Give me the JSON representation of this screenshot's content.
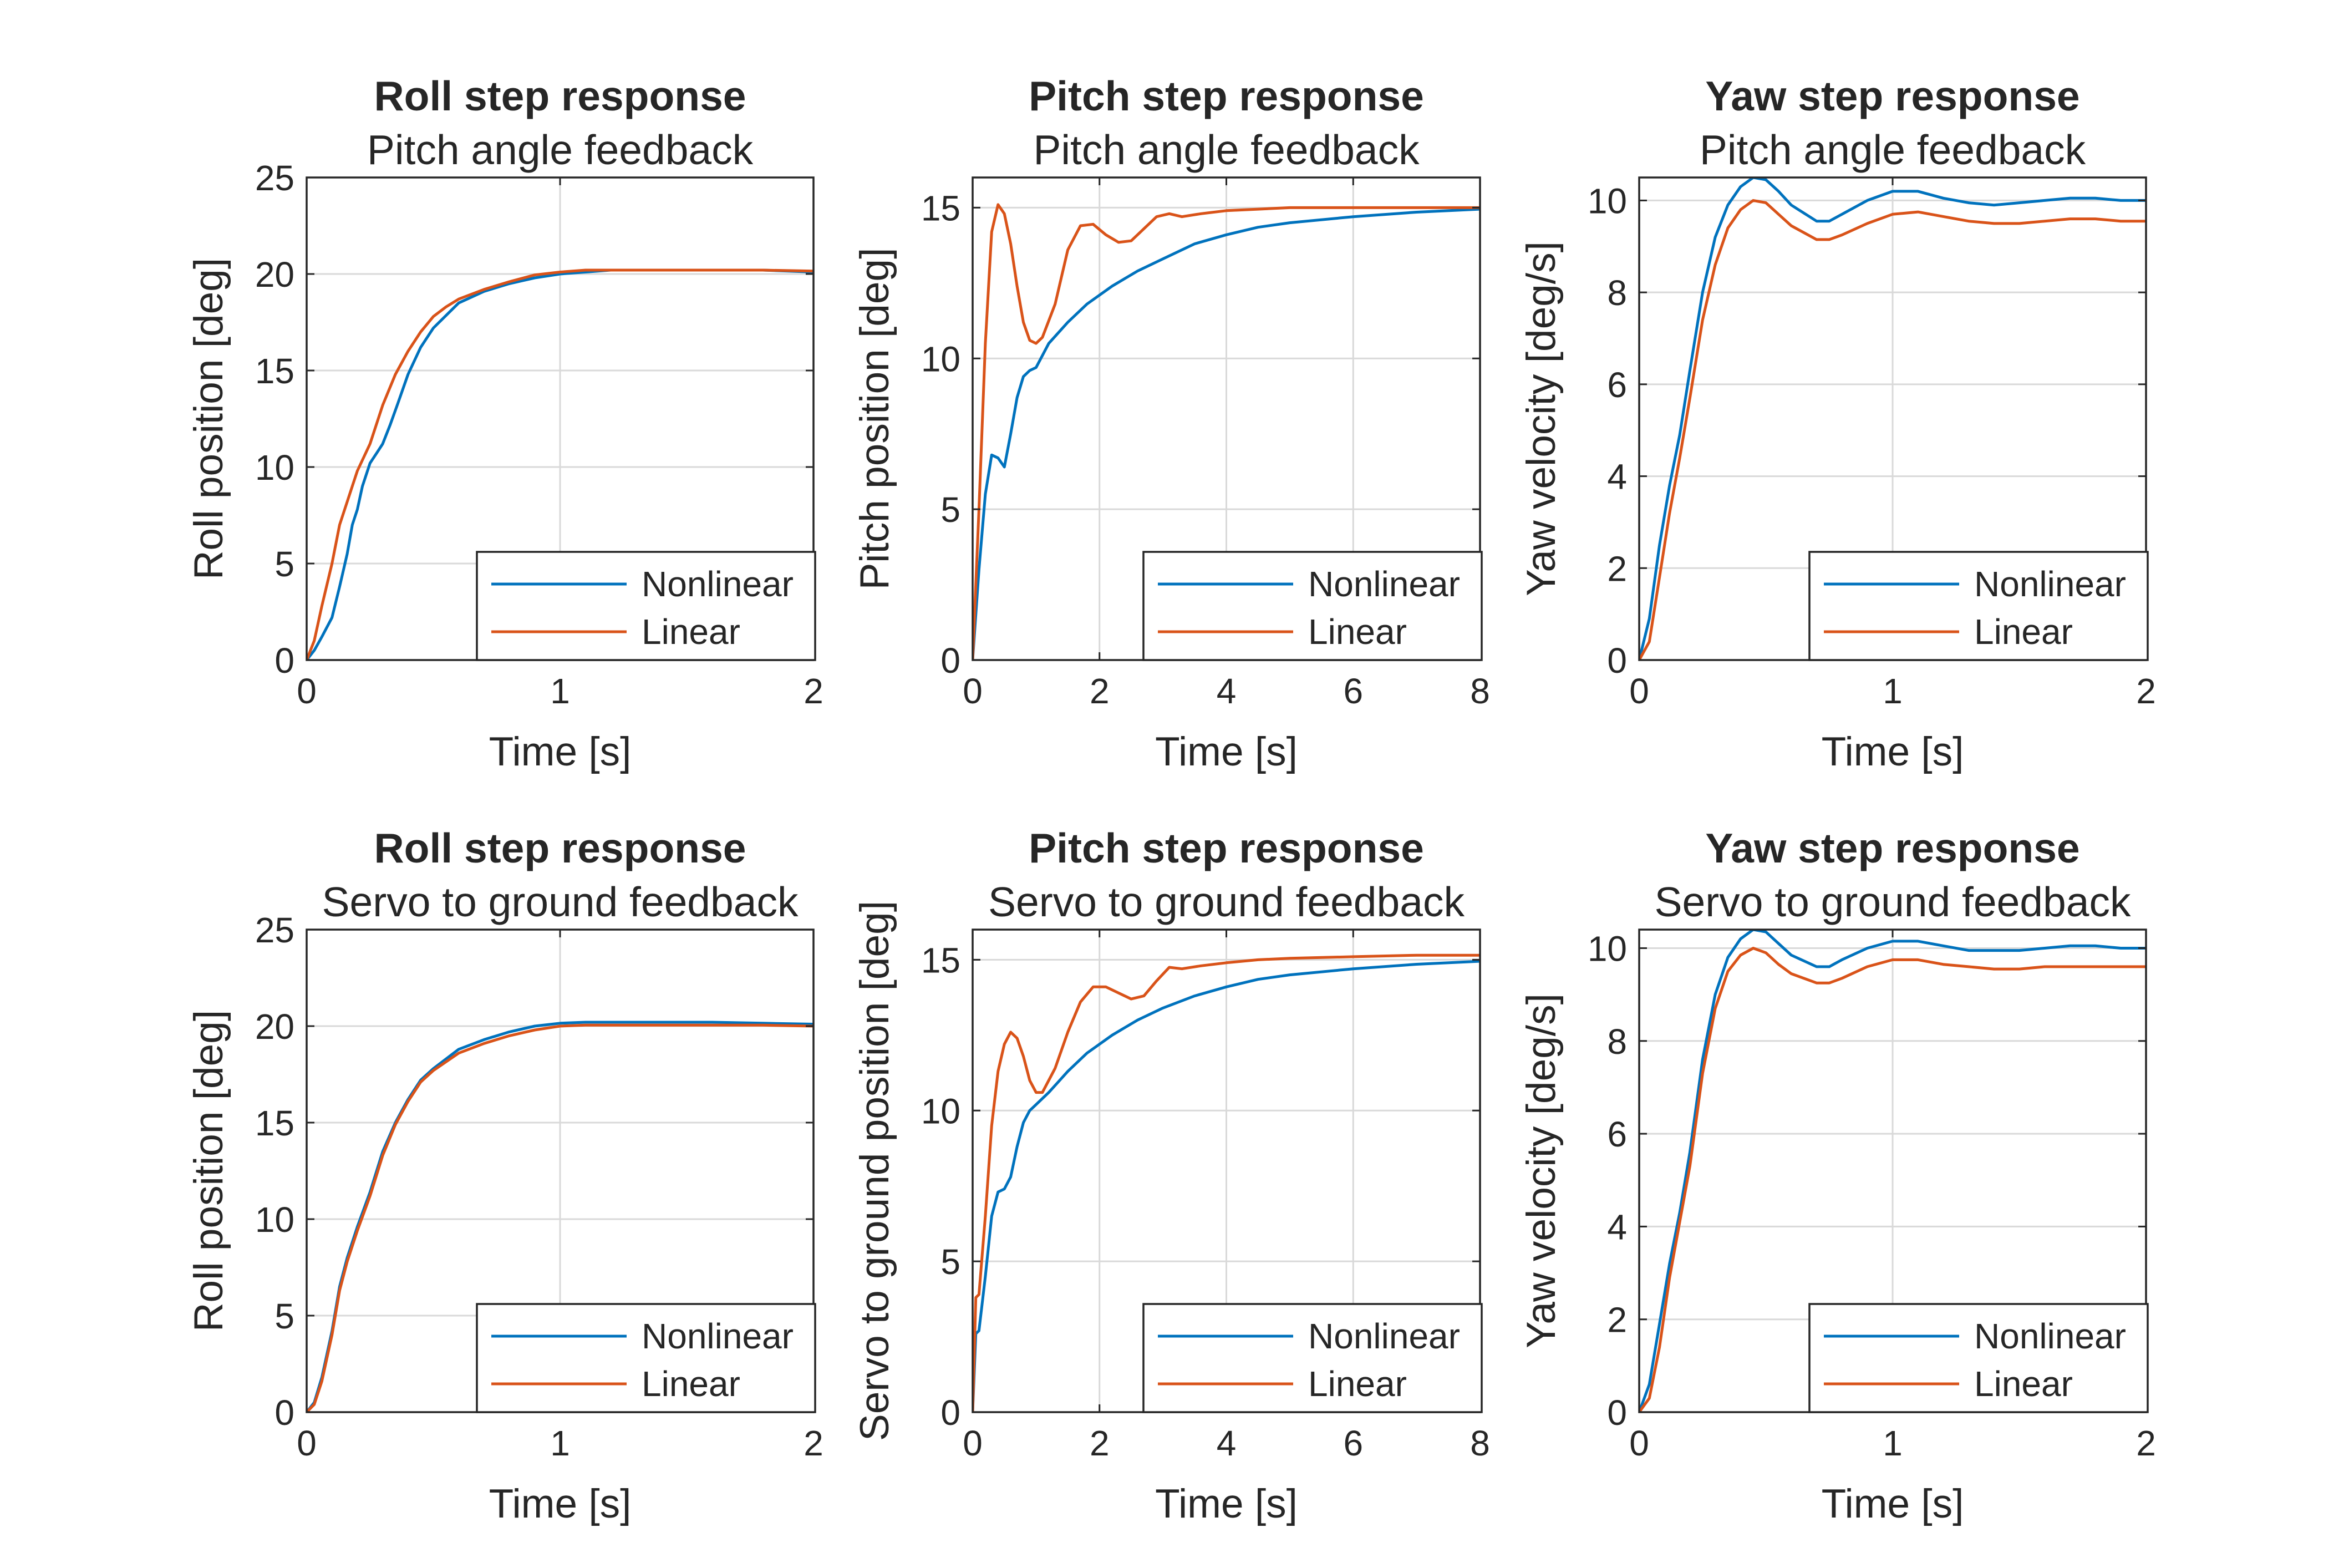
{
  "chart_data": [
    {
      "type": "line",
      "title": "Roll step response",
      "subtitle": "Pitch angle feedback",
      "xlabel": "Time [s]",
      "ylabel": "Roll position [deg]",
      "xlim": [
        0,
        2
      ],
      "ylim": [
        0,
        25
      ],
      "xticks": [
        0,
        1,
        2
      ],
      "yticks": [
        0,
        5,
        10,
        15,
        20,
        25
      ],
      "grid": true,
      "legend_position": "bottom-right",
      "series": [
        {
          "name": "Nonlinear",
          "color": "#0072BD",
          "x": [
            0,
            0.03,
            0.06,
            0.1,
            0.13,
            0.16,
            0.18,
            0.2,
            0.22,
            0.25,
            0.28,
            0.3,
            0.33,
            0.36,
            0.4,
            0.45,
            0.5,
            0.6,
            0.7,
            0.8,
            0.9,
            1.0,
            1.1,
            1.2,
            1.4,
            1.6,
            1.8,
            2.0
          ],
          "y": [
            0,
            0.5,
            1.2,
            2.2,
            3.8,
            5.5,
            7.0,
            7.8,
            9.0,
            10.2,
            10.8,
            11.2,
            12.2,
            13.3,
            14.8,
            16.2,
            17.2,
            18.5,
            19.1,
            19.5,
            19.8,
            20.0,
            20.1,
            20.2,
            20.2,
            20.2,
            20.2,
            20.1
          ]
        },
        {
          "name": "Linear",
          "color": "#D95319",
          "x": [
            0,
            0.03,
            0.06,
            0.1,
            0.13,
            0.16,
            0.2,
            0.25,
            0.3,
            0.35,
            0.4,
            0.45,
            0.5,
            0.55,
            0.6,
            0.7,
            0.8,
            0.9,
            1.0,
            1.1,
            1.2,
            1.4,
            1.6,
            1.8,
            2.0
          ],
          "y": [
            0,
            1.0,
            2.8,
            5.0,
            7.0,
            8.2,
            9.8,
            11.2,
            13.2,
            14.8,
            16.0,
            17.0,
            17.8,
            18.3,
            18.7,
            19.2,
            19.6,
            19.95,
            20.1,
            20.2,
            20.2,
            20.2,
            20.2,
            20.2,
            20.15
          ]
        }
      ]
    },
    {
      "type": "line",
      "title": "Pitch step response",
      "subtitle": "Pitch angle feedback",
      "xlabel": "Time [s]",
      "ylabel": "Pitch position [deg]",
      "xlim": [
        0,
        8
      ],
      "ylim": [
        0,
        16
      ],
      "xticks": [
        0,
        2,
        4,
        6,
        8
      ],
      "yticks": [
        0,
        5,
        10,
        15
      ],
      "grid": true,
      "legend_position": "bottom-right",
      "series": [
        {
          "name": "Nonlinear",
          "color": "#0072BD",
          "x": [
            0,
            0.1,
            0.2,
            0.3,
            0.4,
            0.5,
            0.6,
            0.7,
            0.8,
            0.9,
            1.0,
            1.2,
            1.5,
            1.8,
            2.2,
            2.6,
            3.0,
            3.5,
            4.0,
            4.5,
            5.0,
            6.0,
            7.0,
            8.0
          ],
          "y": [
            0,
            3.0,
            5.5,
            6.8,
            6.7,
            6.4,
            7.5,
            8.7,
            9.4,
            9.6,
            9.7,
            10.5,
            11.2,
            11.8,
            12.4,
            12.9,
            13.3,
            13.8,
            14.1,
            14.35,
            14.5,
            14.7,
            14.85,
            14.95
          ]
        },
        {
          "name": "Linear",
          "color": "#D95319",
          "x": [
            0,
            0.1,
            0.2,
            0.3,
            0.4,
            0.5,
            0.6,
            0.7,
            0.8,
            0.9,
            1.0,
            1.1,
            1.3,
            1.5,
            1.7,
            1.9,
            2.1,
            2.3,
            2.5,
            2.7,
            2.9,
            3.1,
            3.3,
            3.6,
            4.0,
            4.5,
            5.0,
            6.0,
            7.0,
            8.0
          ],
          "y": [
            0,
            5.0,
            10.5,
            14.2,
            15.1,
            14.8,
            13.8,
            12.4,
            11.2,
            10.6,
            10.5,
            10.7,
            11.8,
            13.6,
            14.4,
            14.45,
            14.1,
            13.85,
            13.9,
            14.3,
            14.7,
            14.8,
            14.7,
            14.8,
            14.9,
            14.95,
            15.0,
            15.0,
            15.0,
            15.0
          ]
        }
      ]
    },
    {
      "type": "line",
      "title": "Yaw step response",
      "subtitle": "Pitch angle feedback",
      "xlabel": "Time [s]",
      "ylabel": "Yaw velocity [deg/s]",
      "xlim": [
        0,
        2
      ],
      "ylim": [
        0,
        10.5
      ],
      "xticks": [
        0,
        1,
        2
      ],
      "yticks": [
        0,
        2,
        4,
        6,
        8,
        10
      ],
      "grid": true,
      "legend_position": "bottom-right",
      "series": [
        {
          "name": "Nonlinear",
          "color": "#0072BD",
          "x": [
            0,
            0.04,
            0.08,
            0.12,
            0.16,
            0.2,
            0.25,
            0.3,
            0.35,
            0.4,
            0.45,
            0.5,
            0.55,
            0.6,
            0.7,
            0.75,
            0.8,
            0.9,
            1.0,
            1.1,
            1.2,
            1.3,
            1.4,
            1.5,
            1.6,
            1.7,
            1.8,
            1.9,
            2.0
          ],
          "y": [
            0,
            0.9,
            2.5,
            3.8,
            4.9,
            6.3,
            8.0,
            9.2,
            9.9,
            10.3,
            10.5,
            10.45,
            10.2,
            9.9,
            9.55,
            9.55,
            9.7,
            10.0,
            10.2,
            10.2,
            10.05,
            9.95,
            9.9,
            9.95,
            10.0,
            10.05,
            10.05,
            10.0,
            10.0
          ]
        },
        {
          "name": "Linear",
          "color": "#D95319",
          "x": [
            0,
            0.04,
            0.08,
            0.12,
            0.16,
            0.2,
            0.25,
            0.3,
            0.35,
            0.4,
            0.45,
            0.5,
            0.55,
            0.6,
            0.7,
            0.75,
            0.8,
            0.9,
            1.0,
            1.1,
            1.2,
            1.3,
            1.4,
            1.5,
            1.6,
            1.7,
            1.8,
            1.9,
            2.0
          ],
          "y": [
            0,
            0.4,
            1.8,
            3.2,
            4.4,
            5.7,
            7.4,
            8.6,
            9.4,
            9.8,
            10.0,
            9.95,
            9.7,
            9.45,
            9.15,
            9.15,
            9.25,
            9.5,
            9.7,
            9.75,
            9.65,
            9.55,
            9.5,
            9.5,
            9.55,
            9.6,
            9.6,
            9.55,
            9.55
          ]
        }
      ]
    },
    {
      "type": "line",
      "title": "Roll step response",
      "subtitle": "Servo to ground feedback",
      "xlabel": "Time [s]",
      "ylabel": "Roll position [deg]",
      "xlim": [
        0,
        2
      ],
      "ylim": [
        0,
        25
      ],
      "xticks": [
        0,
        1,
        2
      ],
      "yticks": [
        0,
        5,
        10,
        15,
        20,
        25
      ],
      "grid": true,
      "legend_position": "bottom-right",
      "series": [
        {
          "name": "Nonlinear",
          "color": "#0072BD",
          "x": [
            0,
            0.03,
            0.06,
            0.1,
            0.13,
            0.16,
            0.2,
            0.25,
            0.3,
            0.35,
            0.4,
            0.45,
            0.5,
            0.6,
            0.7,
            0.8,
            0.9,
            1.0,
            1.1,
            1.2,
            1.4,
            1.6,
            1.8,
            2.0
          ],
          "y": [
            0,
            0.5,
            1.8,
            4.2,
            6.5,
            8.0,
            9.6,
            11.4,
            13.5,
            15.0,
            16.2,
            17.2,
            17.8,
            18.8,
            19.3,
            19.7,
            20.0,
            20.15,
            20.2,
            20.2,
            20.2,
            20.2,
            20.15,
            20.1
          ]
        },
        {
          "name": "Linear",
          "color": "#D95319",
          "x": [
            0,
            0.03,
            0.06,
            0.1,
            0.13,
            0.16,
            0.2,
            0.25,
            0.3,
            0.35,
            0.4,
            0.45,
            0.5,
            0.6,
            0.7,
            0.8,
            0.9,
            1.0,
            1.1,
            1.2,
            1.4,
            1.6,
            1.8,
            2.0
          ],
          "y": [
            0,
            0.4,
            1.6,
            4.0,
            6.3,
            7.8,
            9.4,
            11.2,
            13.3,
            14.9,
            16.1,
            17.1,
            17.7,
            18.6,
            19.1,
            19.5,
            19.8,
            20.0,
            20.05,
            20.05,
            20.05,
            20.05,
            20.05,
            20.0
          ]
        }
      ]
    },
    {
      "type": "line",
      "title": "Pitch step response",
      "subtitle": "Servo to ground feedback",
      "xlabel": "Time [s]",
      "ylabel": "Servo to ground position [deg]",
      "xlim": [
        0,
        8
      ],
      "ylim": [
        0,
        16
      ],
      "xticks": [
        0,
        2,
        4,
        6,
        8
      ],
      "yticks": [
        0,
        5,
        10,
        15
      ],
      "grid": true,
      "legend_position": "bottom-right",
      "series": [
        {
          "name": "Nonlinear",
          "color": "#0072BD",
          "x": [
            0,
            0.05,
            0.1,
            0.2,
            0.3,
            0.4,
            0.5,
            0.6,
            0.7,
            0.8,
            0.9,
            1.0,
            1.2,
            1.5,
            1.8,
            2.2,
            2.6,
            3.0,
            3.5,
            4.0,
            4.5,
            5.0,
            6.0,
            7.0,
            8.0
          ],
          "y": [
            0,
            2.6,
            2.7,
            4.5,
            6.5,
            7.3,
            7.4,
            7.8,
            8.8,
            9.6,
            10.0,
            10.2,
            10.6,
            11.3,
            11.9,
            12.5,
            13.0,
            13.4,
            13.8,
            14.1,
            14.35,
            14.5,
            14.7,
            14.85,
            14.95
          ]
        },
        {
          "name": "Linear",
          "color": "#D95319",
          "x": [
            0,
            0.05,
            0.1,
            0.2,
            0.3,
            0.4,
            0.5,
            0.6,
            0.7,
            0.8,
            0.9,
            1.0,
            1.1,
            1.3,
            1.5,
            1.7,
            1.9,
            2.1,
            2.3,
            2.5,
            2.7,
            2.9,
            3.1,
            3.3,
            3.6,
            4.0,
            4.5,
            5.0,
            6.0,
            7.0,
            8.0
          ],
          "y": [
            0,
            3.8,
            3.9,
            6.5,
            9.5,
            11.3,
            12.2,
            12.6,
            12.4,
            11.8,
            11.0,
            10.6,
            10.6,
            11.4,
            12.6,
            13.6,
            14.1,
            14.1,
            13.9,
            13.7,
            13.8,
            14.3,
            14.75,
            14.7,
            14.8,
            14.9,
            15.0,
            15.05,
            15.1,
            15.15,
            15.15
          ]
        }
      ]
    },
    {
      "type": "line",
      "title": "Yaw step response",
      "subtitle": "Servo to ground feedback",
      "xlabel": "Time [s]",
      "ylabel": "Yaw velocity [deg/s]",
      "xlim": [
        0,
        2
      ],
      "ylim": [
        0,
        10.4
      ],
      "xticks": [
        0,
        1,
        2
      ],
      "yticks": [
        0,
        2,
        4,
        6,
        8,
        10
      ],
      "grid": true,
      "legend_position": "bottom-right",
      "series": [
        {
          "name": "Nonlinear",
          "color": "#0072BD",
          "x": [
            0,
            0.04,
            0.08,
            0.12,
            0.16,
            0.2,
            0.25,
            0.3,
            0.35,
            0.4,
            0.45,
            0.5,
            0.55,
            0.6,
            0.7,
            0.75,
            0.8,
            0.9,
            1.0,
            1.1,
            1.2,
            1.3,
            1.4,
            1.5,
            1.6,
            1.7,
            1.8,
            1.9,
            2.0
          ],
          "y": [
            0,
            0.6,
            1.9,
            3.2,
            4.3,
            5.6,
            7.6,
            9.0,
            9.8,
            10.2,
            10.4,
            10.35,
            10.1,
            9.85,
            9.6,
            9.6,
            9.75,
            10.0,
            10.15,
            10.15,
            10.05,
            9.95,
            9.95,
            9.95,
            10.0,
            10.05,
            10.05,
            10.0,
            10.0
          ]
        },
        {
          "name": "Linear",
          "color": "#D95319",
          "x": [
            0,
            0.04,
            0.08,
            0.12,
            0.16,
            0.2,
            0.25,
            0.3,
            0.35,
            0.4,
            0.45,
            0.5,
            0.55,
            0.6,
            0.7,
            0.75,
            0.8,
            0.9,
            1.0,
            1.1,
            1.2,
            1.3,
            1.4,
            1.5,
            1.6,
            1.7,
            1.8,
            1.9,
            2.0
          ],
          "y": [
            0,
            0.3,
            1.4,
            2.9,
            4.1,
            5.3,
            7.3,
            8.7,
            9.5,
            9.85,
            10.0,
            9.9,
            9.65,
            9.45,
            9.25,
            9.25,
            9.35,
            9.6,
            9.75,
            9.75,
            9.65,
            9.6,
            9.55,
            9.55,
            9.6,
            9.6,
            9.6,
            9.6,
            9.6
          ]
        }
      ]
    }
  ]
}
